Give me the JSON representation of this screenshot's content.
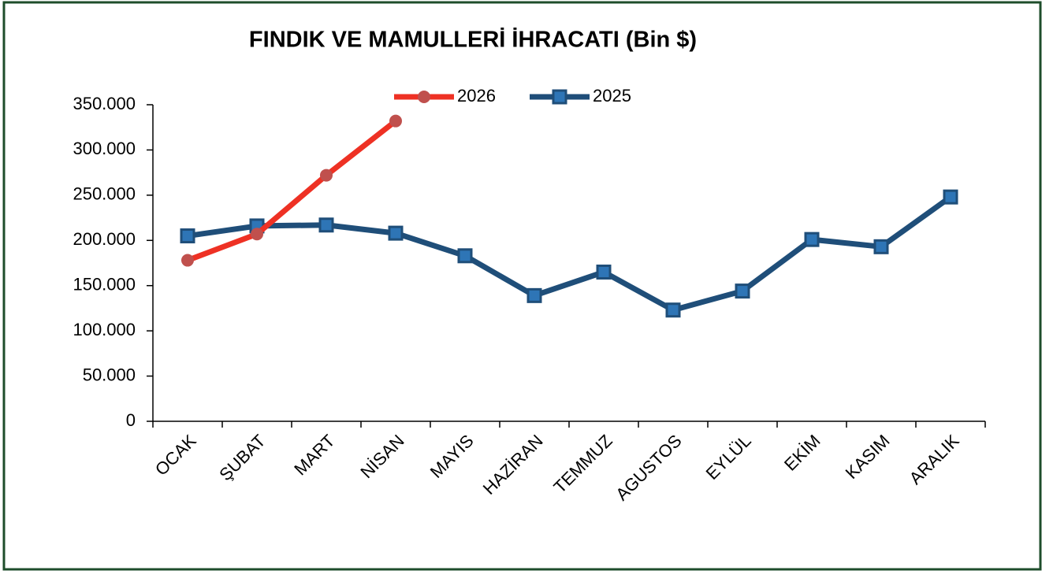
{
  "chart_data": {
    "type": "line",
    "title": "FINDIK VE MAMULLERİ İHRACATI (Bin $)",
    "categories": [
      "OCAK",
      "ŞUBAT",
      "MART",
      "NİSAN",
      "MAYIS",
      "HAZİRAN",
      "TEMMUZ",
      "AGUSTOS",
      "EYLÜL",
      "EKİM",
      "KASIM",
      "ARALIK"
    ],
    "series": [
      {
        "name": "2026",
        "color": "#ee3124",
        "marker": "circle",
        "marker_color": "#c0504d",
        "values": [
          178000,
          207000,
          272000,
          332000,
          null,
          null,
          null,
          null,
          null,
          null,
          null,
          null
        ]
      },
      {
        "name": "2025",
        "color": "#1f4e79",
        "marker": "square",
        "marker_color": "#2e75b6",
        "values": [
          205000,
          216000,
          217000,
          208000,
          183000,
          139000,
          165000,
          123000,
          144000,
          201000,
          193000,
          248000
        ]
      }
    ],
    "ylim": [
      0,
      350000
    ],
    "yticks": [
      0,
      {
        "value": 50000,
        "label": "50.000"
      },
      {
        "value": 100000,
        "label": "100.000"
      },
      {
        "value": 150000,
        "label": "150.000"
      },
      {
        "value": 200000,
        "label": "200.000"
      },
      {
        "value": 250000,
        "label": "250.000"
      },
      {
        "value": 300000,
        "label": "300.000"
      },
      {
        "value": 350000,
        "label": "350.000"
      }
    ],
    "grid": false,
    "legend": "top"
  }
}
